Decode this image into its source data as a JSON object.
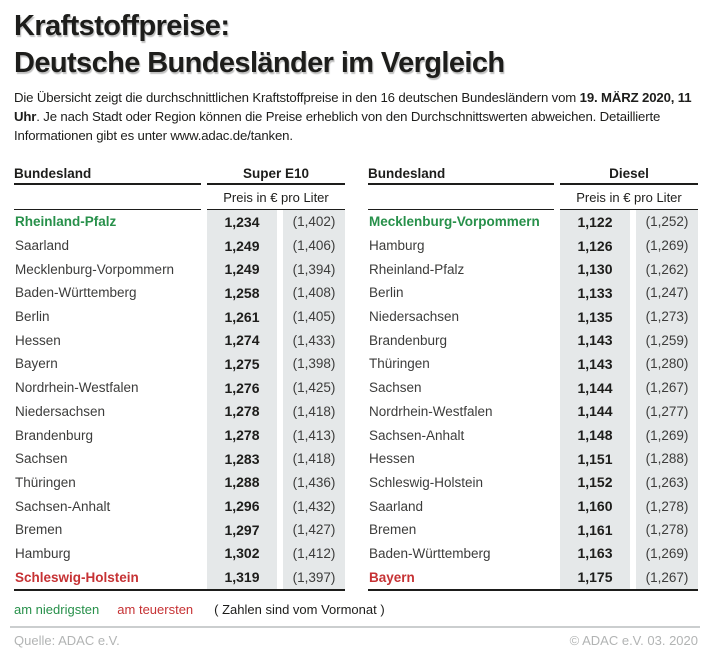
{
  "title": {
    "line1": "Kraftstoffpreise:",
    "line2": "Deutsche Bundesländer im Vergleich"
  },
  "intro": {
    "segments": [
      {
        "text": "Die Übersicht zeigt die durchschnittlichen Kraftstoffpreise in den 16 deutschen Bundesländern vom ",
        "bold": false
      },
      {
        "text": "19. MÄRZ 2020, 11 Uhr",
        "bold": true
      },
      {
        "text": ". Je nach Stadt oder Region können die Preise erheblich von den Durchschnittswerten abweichen. Detaillierte Informationen gibt es unter www.adac.de/tanken.",
        "bold": false
      }
    ]
  },
  "tables": [
    {
      "name_header": "Bundesland",
      "fuel_header": "Super E10",
      "subheader": "Preis in € pro Liter",
      "rows": [
        {
          "land": "Rheinland-Pfalz",
          "price": "1,234",
          "prev": "(1,402)",
          "highlight": "cheapest"
        },
        {
          "land": "Saarland",
          "price": "1,249",
          "prev": "(1,406)"
        },
        {
          "land": "Mecklenburg-Vorpommern",
          "price": "1,249",
          "prev": "(1,394)"
        },
        {
          "land": "Baden-Württemberg",
          "price": "1,258",
          "prev": "(1,408)"
        },
        {
          "land": "Berlin",
          "price": "1,261",
          "prev": "(1,405)"
        },
        {
          "land": "Hessen",
          "price": "1,274",
          "prev": "(1,433)"
        },
        {
          "land": "Bayern",
          "price": "1,275",
          "prev": "(1,398)"
        },
        {
          "land": "Nordrhein-Westfalen",
          "price": "1,276",
          "prev": "(1,425)"
        },
        {
          "land": "Niedersachsen",
          "price": "1,278",
          "prev": "(1,418)"
        },
        {
          "land": "Brandenburg",
          "price": "1,278",
          "prev": "(1,413)"
        },
        {
          "land": "Sachsen",
          "price": "1,283",
          "prev": "(1,418)"
        },
        {
          "land": "Thüringen",
          "price": "1,288",
          "prev": "(1,436)"
        },
        {
          "land": "Sachsen-Anhalt",
          "price": "1,296",
          "prev": "(1,432)"
        },
        {
          "land": "Bremen",
          "price": "1,297",
          "prev": "(1,427)"
        },
        {
          "land": "Hamburg",
          "price": "1,302",
          "prev": "(1,412)"
        },
        {
          "land": "Schleswig-Holstein",
          "price": "1,319",
          "prev": "(1,397)",
          "highlight": "most_expensive"
        }
      ]
    },
    {
      "name_header": "Bundesland",
      "fuel_header": "Diesel",
      "subheader": "Preis in € pro Liter",
      "rows": [
        {
          "land": "Mecklenburg-Vorpommern",
          "price": "1,122",
          "prev": "(1,252)",
          "highlight": "cheapest"
        },
        {
          "land": "Hamburg",
          "price": "1,126",
          "prev": "(1,269)"
        },
        {
          "land": "Rheinland-Pfalz",
          "price": "1,130",
          "prev": "(1,262)"
        },
        {
          "land": "Berlin",
          "price": "1,133",
          "prev": "(1,247)"
        },
        {
          "land": "Niedersachsen",
          "price": "1,135",
          "prev": "(1,273)"
        },
        {
          "land": "Brandenburg",
          "price": "1,143",
          "prev": "(1,259)"
        },
        {
          "land": "Thüringen",
          "price": "1,143",
          "prev": "(1,280)"
        },
        {
          "land": "Sachsen",
          "price": "1,144",
          "prev": "(1,267)"
        },
        {
          "land": "Nordrhein-Westfalen",
          "price": "1,144",
          "prev": "(1,277)"
        },
        {
          "land": "Sachsen-Anhalt",
          "price": "1,148",
          "prev": "(1,269)"
        },
        {
          "land": "Hessen",
          "price": "1,151",
          "prev": "(1,288)"
        },
        {
          "land": "Schleswig-Holstein",
          "price": "1,152",
          "prev": "(1,263)"
        },
        {
          "land": "Saarland",
          "price": "1,160",
          "prev": "(1,278)"
        },
        {
          "land": "Bremen",
          "price": "1,161",
          "prev": "(1,278)"
        },
        {
          "land": "Baden-Württemberg",
          "price": "1,163",
          "prev": "(1,269)"
        },
        {
          "land": "Bayern",
          "price": "1,175",
          "prev": "(1,267)",
          "highlight": "most_expensive"
        }
      ]
    }
  ],
  "legend": {
    "cheapest_label": "am niedrigsten",
    "most_expensive_label": "am teuersten",
    "note": "( Zahlen sind vom Vormonat )"
  },
  "footer": {
    "source": "Quelle: ADAC e.V.",
    "copyright": "© ADAC e.V. 03. 2020"
  },
  "colors": {
    "dark_text": "#1d1d1b",
    "body_text": "#3c3c3b",
    "green": "#27904a",
    "red": "#c63234",
    "column_bg": "#e5e8e9",
    "divider": "#cbcecf",
    "footer_text": "#b2b4b4"
  },
  "chart_data": [
    {
      "type": "table",
      "title": "Super E10",
      "unit": "Preis in € pro Liter",
      "columns": [
        "Bundesland",
        "Preis",
        "Vormonat"
      ],
      "rows": [
        [
          "Rheinland-Pfalz",
          1.234,
          1.402
        ],
        [
          "Saarland",
          1.249,
          1.406
        ],
        [
          "Mecklenburg-Vorpommern",
          1.249,
          1.394
        ],
        [
          "Baden-Württemberg",
          1.258,
          1.408
        ],
        [
          "Berlin",
          1.261,
          1.405
        ],
        [
          "Hessen",
          1.274,
          1.433
        ],
        [
          "Bayern",
          1.275,
          1.398
        ],
        [
          "Nordrhein-Westfalen",
          1.276,
          1.425
        ],
        [
          "Niedersachsen",
          1.278,
          1.418
        ],
        [
          "Brandenburg",
          1.278,
          1.413
        ],
        [
          "Sachsen",
          1.283,
          1.418
        ],
        [
          "Thüringen",
          1.288,
          1.436
        ],
        [
          "Sachsen-Anhalt",
          1.296,
          1.432
        ],
        [
          "Bremen",
          1.297,
          1.427
        ],
        [
          "Hamburg",
          1.302,
          1.412
        ],
        [
          "Schleswig-Holstein",
          1.319,
          1.397
        ]
      ],
      "annotations": {
        "cheapest": "Rheinland-Pfalz",
        "most_expensive": "Schleswig-Holstein"
      }
    },
    {
      "type": "table",
      "title": "Diesel",
      "unit": "Preis in € pro Liter",
      "columns": [
        "Bundesland",
        "Preis",
        "Vormonat"
      ],
      "rows": [
        [
          "Mecklenburg-Vorpommern",
          1.122,
          1.252
        ],
        [
          "Hamburg",
          1.126,
          1.269
        ],
        [
          "Rheinland-Pfalz",
          1.13,
          1.262
        ],
        [
          "Berlin",
          1.133,
          1.247
        ],
        [
          "Niedersachsen",
          1.135,
          1.273
        ],
        [
          "Brandenburg",
          1.143,
          1.259
        ],
        [
          "Thüringen",
          1.143,
          1.28
        ],
        [
          "Sachsen",
          1.144,
          1.267
        ],
        [
          "Nordrhein-Westfalen",
          1.144,
          1.277
        ],
        [
          "Sachsen-Anhalt",
          1.148,
          1.269
        ],
        [
          "Hessen",
          1.151,
          1.288
        ],
        [
          "Schleswig-Holstein",
          1.152,
          1.263
        ],
        [
          "Saarland",
          1.16,
          1.278
        ],
        [
          "Bremen",
          1.161,
          1.278
        ],
        [
          "Baden-Württemberg",
          1.163,
          1.269
        ],
        [
          "Bayern",
          1.175,
          1.267
        ]
      ],
      "annotations": {
        "cheapest": "Mecklenburg-Vorpommern",
        "most_expensive": "Bayern"
      }
    }
  ]
}
